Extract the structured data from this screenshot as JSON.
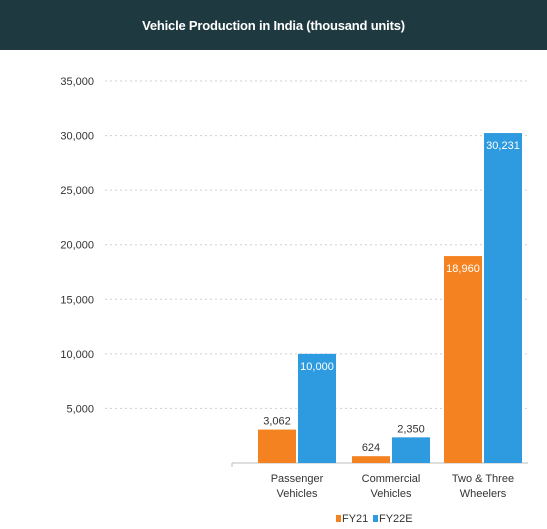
{
  "header": {
    "title": "Vehicle Production in India (thousand units)"
  },
  "colors": {
    "header_bg": "#1e3a40",
    "fy21": "#f58220",
    "fy22e": "#2e9be0"
  },
  "chart_data": {
    "type": "bar",
    "title": "Vehicle Production in India (thousand units)",
    "categories": [
      [
        "Passenger",
        "Vehicles"
      ],
      [
        "Commercial",
        "Vehicles"
      ],
      [
        "Two & Three",
        "Wheelers"
      ]
    ],
    "series": [
      {
        "name": "FY21",
        "values": [
          3062,
          624,
          18960
        ],
        "labels": [
          "3,062",
          "624",
          "18,960"
        ]
      },
      {
        "name": "FY22E",
        "values": [
          10000,
          2350,
          30231
        ],
        "labels": [
          "10,000",
          "2,350",
          "30,231"
        ]
      }
    ],
    "yticks": [
      "5,000",
      "10,000",
      "15,000",
      "20,000",
      "25,000",
      "30,000",
      "35,000"
    ],
    "ytick_values": [
      5000,
      10000,
      15000,
      20000,
      25000,
      30000,
      35000
    ],
    "ylim": [
      0,
      35000
    ],
    "grid": true,
    "legend": "bottom-right"
  }
}
